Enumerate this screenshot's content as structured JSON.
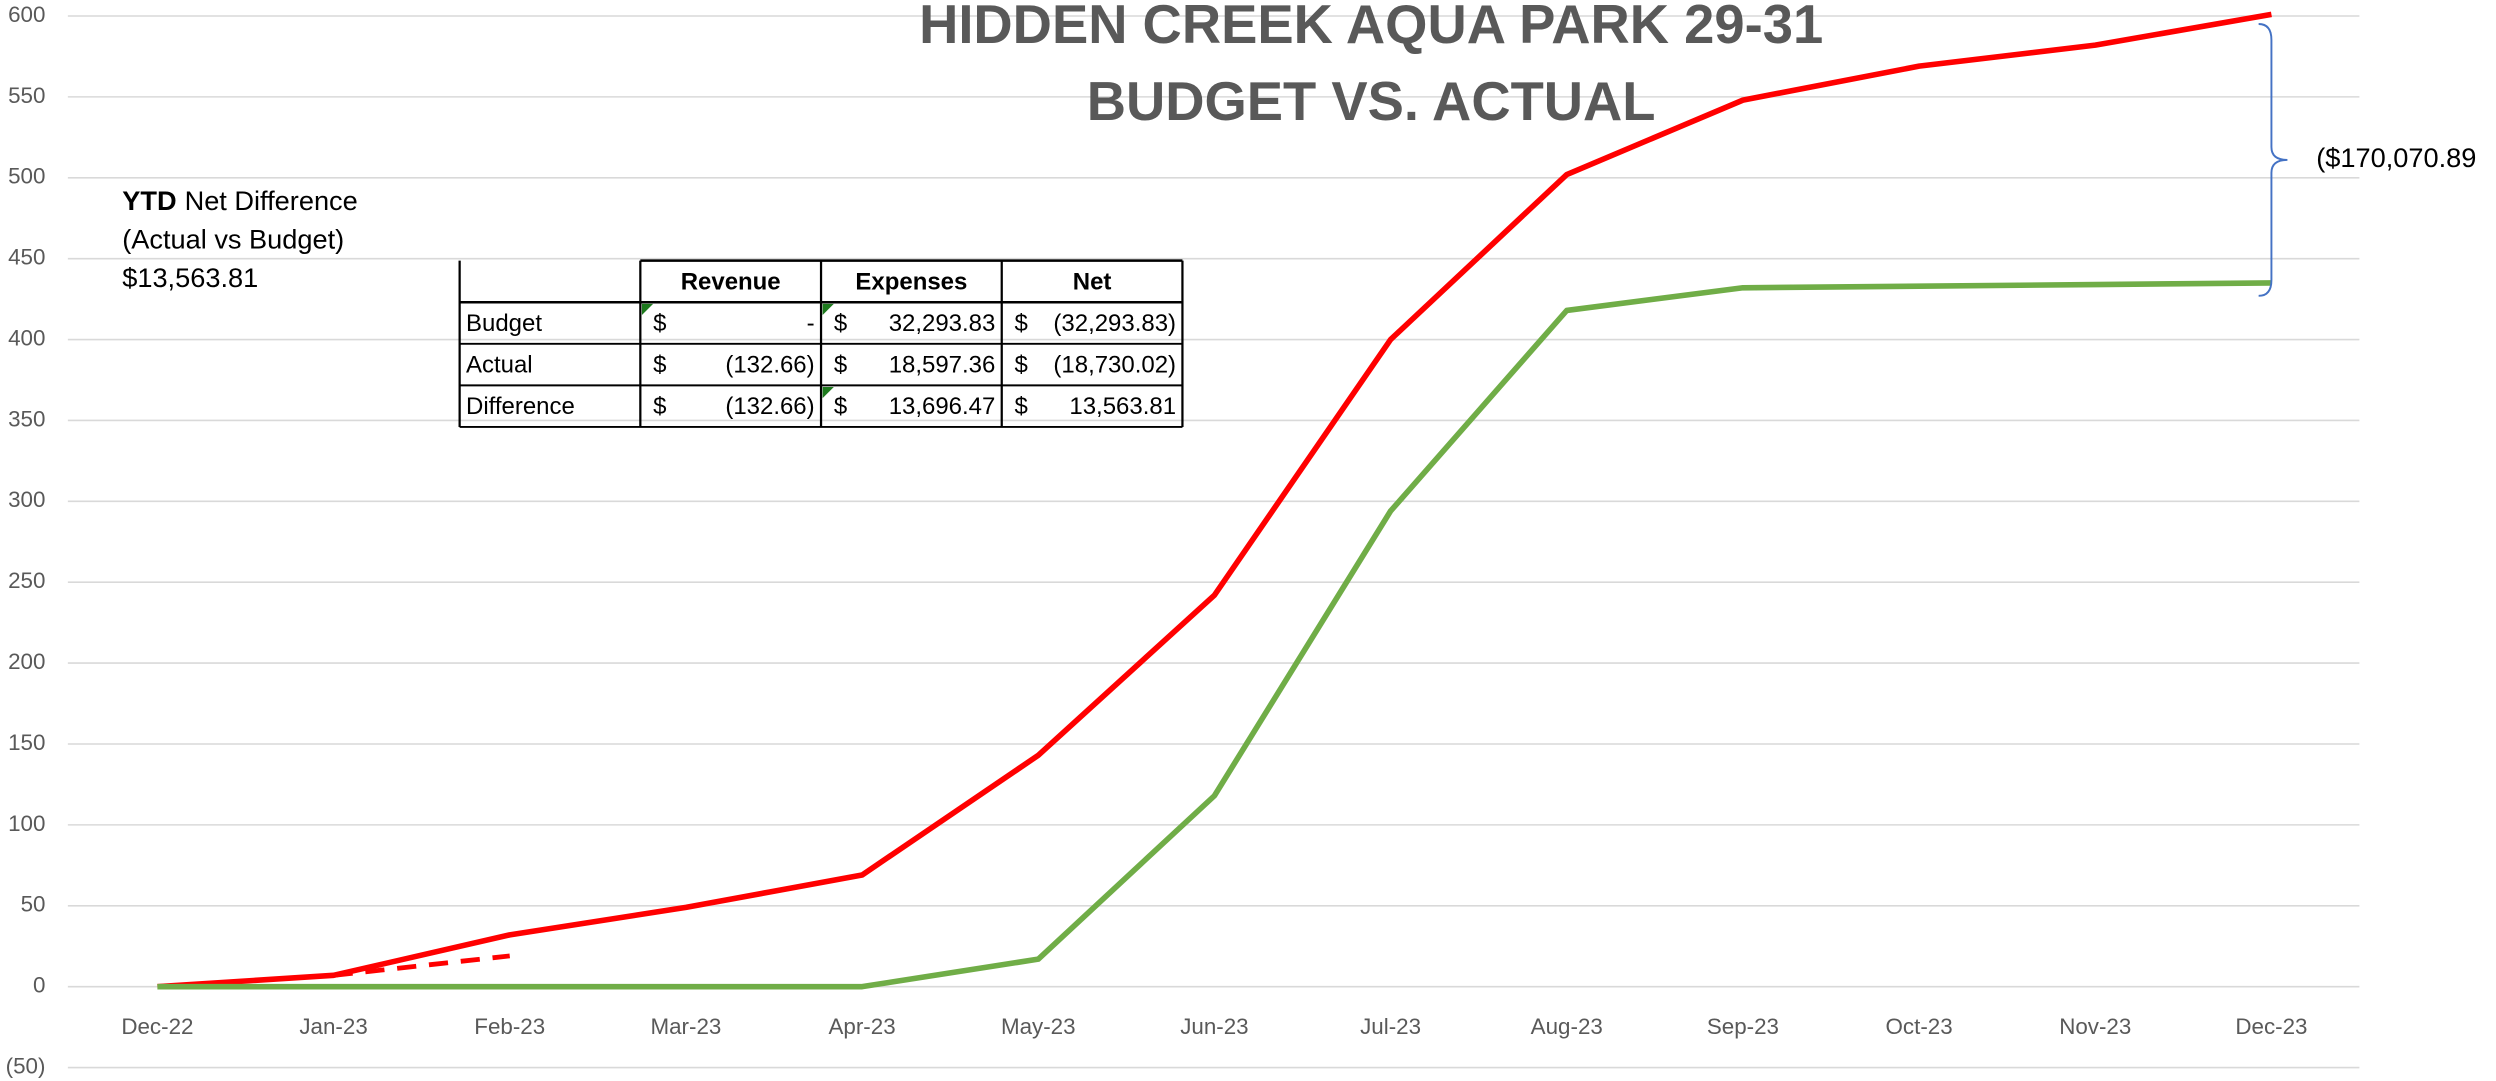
{
  "chart_data": {
    "type": "line",
    "title": "HIDDEN CREEK AQUA PARK 29-31",
    "subtitle": "BUDGET VS. ACTUAL",
    "categories": [
      "Dec-22",
      "Jan-23",
      "Feb-23",
      "Mar-23",
      "Apr-23",
      "May-23",
      "Jun-23",
      "Jul-23",
      "Aug-23",
      "Sep-23",
      "Oct-23",
      "Nov-23",
      "Dec-23"
    ],
    "series": [
      {
        "color": "#ff0000",
        "values": [
          0,
          7,
          32,
          49,
          69,
          143,
          242,
          400,
          502,
          548,
          569,
          582,
          601
        ]
      },
      {
        "color": "#70ad47",
        "values": [
          0,
          0,
          0,
          0,
          0,
          17,
          118,
          294,
          418,
          432,
          433,
          434,
          435
        ]
      },
      {
        "color": "#ff0000",
        "dashed": true,
        "values": [
          null,
          7,
          19,
          null,
          null,
          null,
          null,
          null,
          null,
          null,
          null,
          null,
          null
        ]
      }
    ],
    "ylim": [
      -50,
      600
    ],
    "yticks": [
      {
        "value": -50,
        "label": "(50)"
      },
      0,
      50,
      100,
      150,
      200,
      250,
      300,
      350,
      400,
      450,
      500,
      550,
      600
    ],
    "grid": true,
    "annotations": {
      "ytd_bold": "YTD",
      "ytd_rest": "Net Difference",
      "ytd_line2": "(Actual vs Budget)",
      "ytd_value": "$13,563.81",
      "gap": "($170,070.89"
    },
    "table": {
      "currency": "$",
      "header": [
        "Revenue",
        "Expenses",
        "Net"
      ],
      "rows": [
        {
          "label": "Budget",
          "cells": [
            "-",
            "32,293.83",
            "(32,293.83)"
          ]
        },
        {
          "label": "Actual",
          "cells": [
            "(132.66)",
            "18,597.36",
            "(18,730.02)"
          ]
        },
        {
          "label": "Difference",
          "cells": [
            "(132.66)",
            "13,696.47",
            "13,563.81"
          ]
        }
      ]
    }
  }
}
